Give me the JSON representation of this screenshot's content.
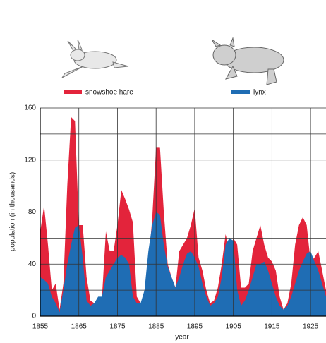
{
  "chart_data": {
    "type": "area",
    "series": [
      {
        "name": "snowshoe hare",
        "color": "#e3243b",
        "values": [
          65,
          85,
          55,
          20,
          25,
          5,
          25,
          100,
          153,
          150,
          70,
          70,
          30,
          12,
          10,
          10,
          15,
          65,
          50,
          50,
          70,
          97,
          90,
          82,
          72,
          15,
          10,
          15,
          40,
          75,
          130,
          130,
          80,
          40,
          30,
          22,
          50,
          55,
          60,
          70,
          83,
          45,
          35,
          20,
          10,
          12,
          22,
          40,
          63,
          50,
          60,
          55,
          22,
          22,
          25,
          50,
          60,
          70,
          55,
          45,
          42,
          35,
          15,
          5,
          10,
          25,
          55,
          70,
          76,
          70,
          42,
          45,
          50,
          35,
          20
        ]
      },
      {
        "name": "lynx",
        "color": "#1f6db4",
        "values": [
          30,
          28,
          25,
          15,
          10,
          3,
          20,
          40,
          55,
          68,
          70,
          45,
          12,
          8,
          10,
          15,
          15,
          30,
          35,
          40,
          45,
          47,
          45,
          40,
          15,
          10,
          10,
          20,
          50,
          70,
          80,
          78,
          55,
          38,
          30,
          22,
          30,
          40,
          48,
          50,
          45,
          38,
          25,
          15,
          8,
          10,
          15,
          30,
          55,
          60,
          58,
          20,
          8,
          12,
          20,
          30,
          40,
          40,
          42,
          35,
          25,
          15,
          8,
          5,
          8,
          15,
          25,
          35,
          42,
          48,
          50,
          42,
          35,
          25,
          15
        ]
      }
    ],
    "x": [
      1855,
      1856,
      1857,
      1858,
      1859,
      1860,
      1861,
      1862,
      1863,
      1864,
      1865,
      1866,
      1867,
      1868,
      1869,
      1870,
      1871,
      1872,
      1873,
      1874,
      1875,
      1876,
      1877,
      1878,
      1879,
      1880,
      1881,
      1882,
      1883,
      1884,
      1885,
      1886,
      1887,
      1888,
      1889,
      1890,
      1891,
      1892,
      1893,
      1894,
      1895,
      1896,
      1897,
      1898,
      1899,
      1900,
      1901,
      1902,
      1903,
      1904,
      1905,
      1906,
      1907,
      1908,
      1909,
      1910,
      1911,
      1912,
      1913,
      1914,
      1915,
      1916,
      1917,
      1918,
      1919,
      1920,
      1921,
      1922,
      1923,
      1924,
      1925,
      1926,
      1927,
      1928,
      1929
    ],
    "xlim": [
      1855,
      1929
    ],
    "xticks": [
      1855,
      1865,
      1875,
      1885,
      1895,
      1905,
      1915,
      1925
    ],
    "ylim": [
      0,
      160
    ],
    "yticks": [
      0,
      40,
      80,
      120,
      160
    ],
    "minor_yticks": [
      20,
      60,
      100,
      140
    ],
    "grid": true,
    "xlabel": "year",
    "ylabel": "population (in thousands)"
  }
}
